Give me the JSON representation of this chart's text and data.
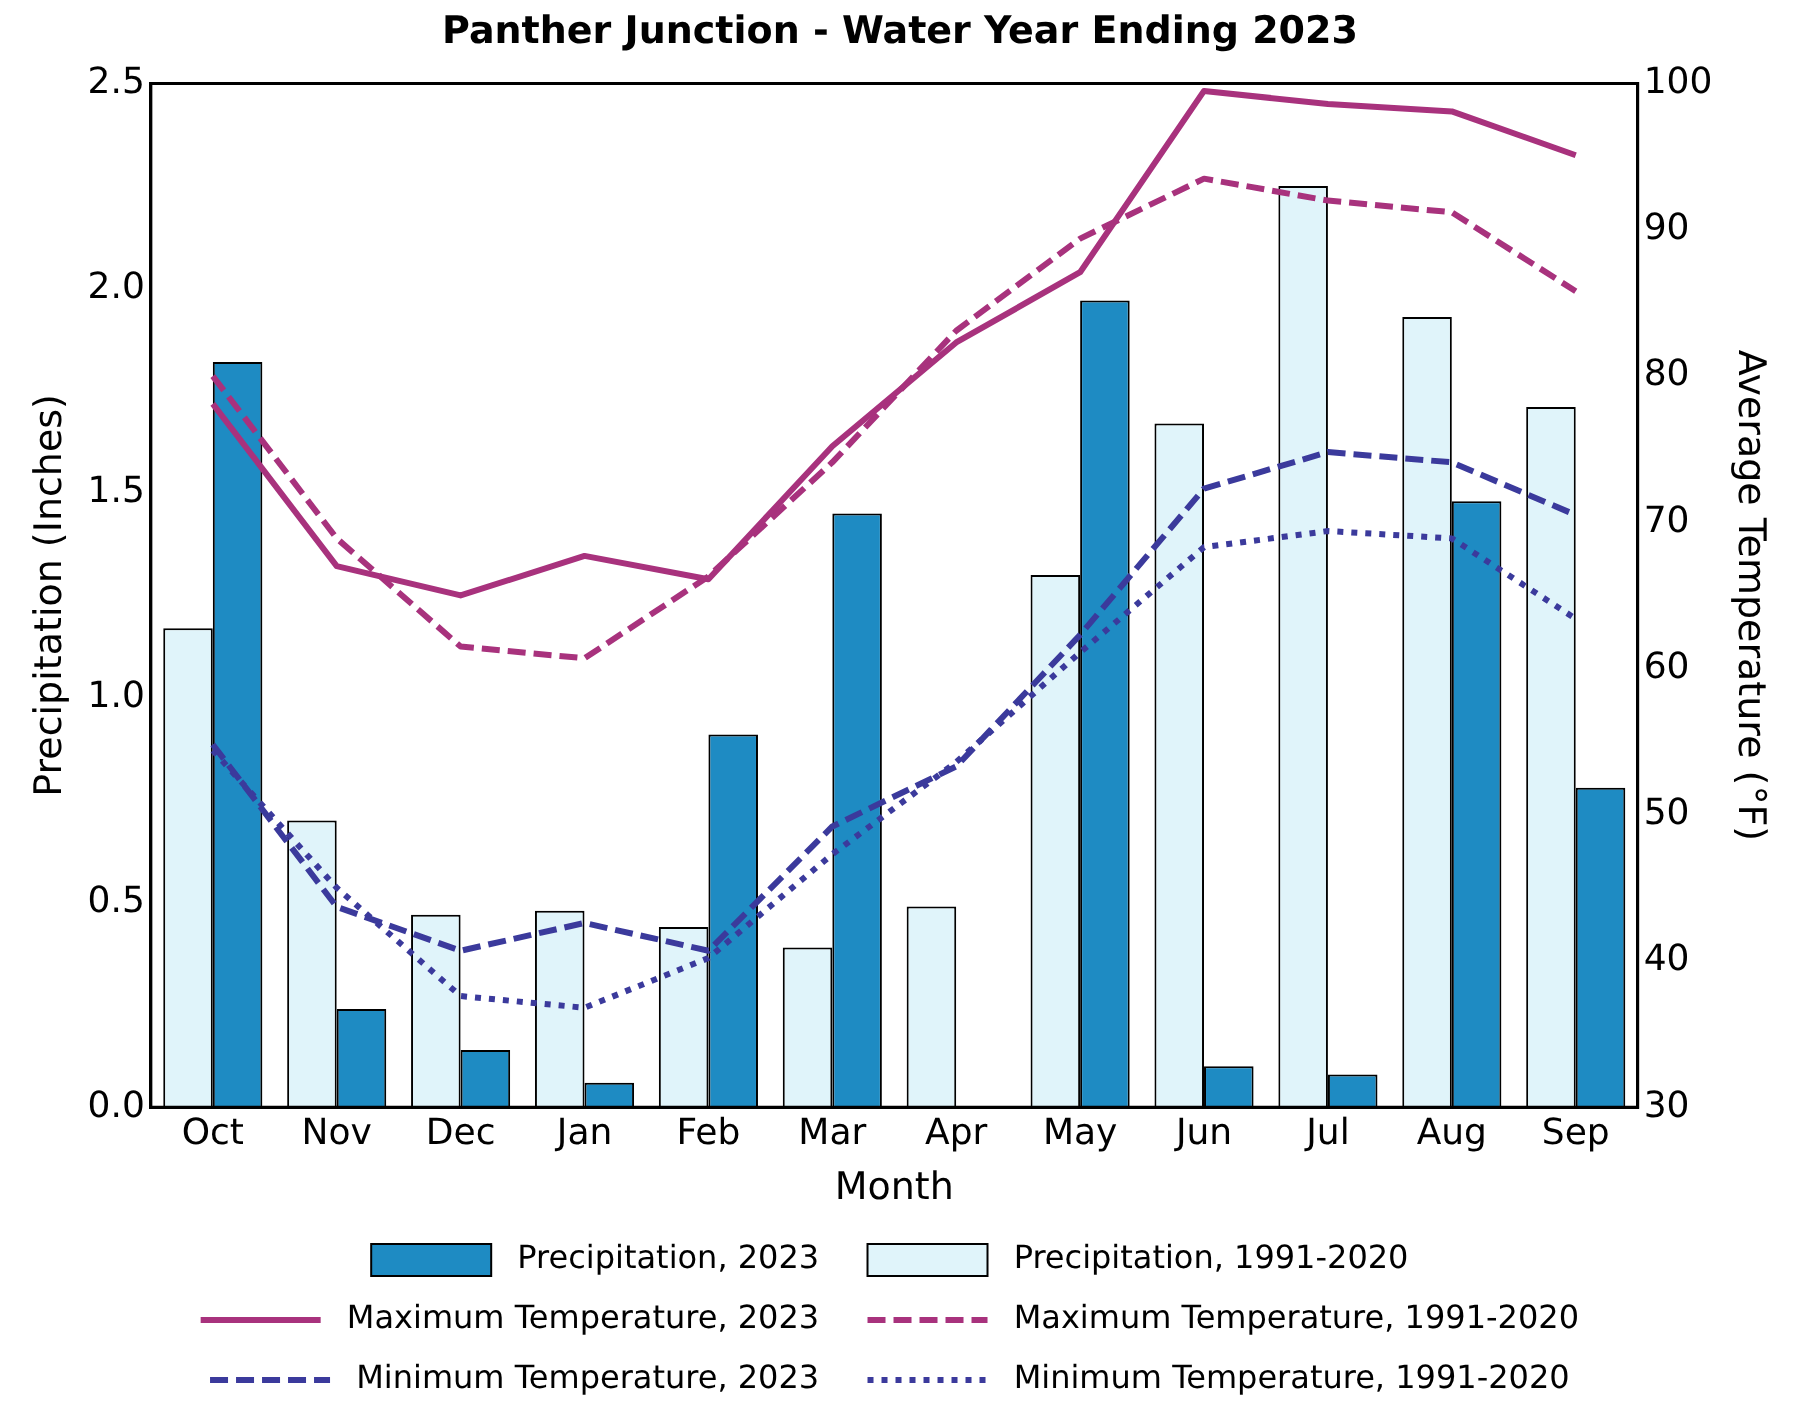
{
  "chart_data": {
    "type": "bar",
    "title": "Panther Junction - Water Year Ending 2023",
    "xlabel": "Month",
    "ylabel": "Precipitation (Inches)",
    "y2label": "Average Temperature (°F)",
    "categories": [
      "Oct",
      "Nov",
      "Dec",
      "Jan",
      "Feb",
      "Mar",
      "Apr",
      "May",
      "Jun",
      "Jul",
      "Aug",
      "Sep"
    ],
    "series": [
      {
        "name": "Precipitation, 2023",
        "color": "#1e8bc3",
        "values": [
          1.82,
          0.24,
          0.14,
          0.06,
          0.91,
          1.45,
          0,
          1.97,
          0.1,
          0.08,
          1.48,
          0.78
        ]
      },
      {
        "name": "Precipitation, 1991-2020",
        "color": "#e0f4fa",
        "values": [
          1.17,
          0.7,
          0.47,
          0.48,
          0.44,
          0.39,
          0.49,
          1.3,
          1.67,
          2.25,
          1.93,
          1.71
        ]
      },
      {
        "name": "Maximum Temperature, 2023",
        "type": "line",
        "axis": "y2",
        "line_style": "solid",
        "color": "#a8327d",
        "values": [
          78.1,
          67.0,
          65.0,
          67.7,
          66.1,
          75.2,
          82.3,
          87.1,
          99.5,
          98.6,
          98.1,
          95.1
        ]
      },
      {
        "name": "Maximum Temperature, 1991-2020",
        "type": "line",
        "axis": "y2",
        "line_style": "dashed",
        "color": "#a8327d",
        "values": [
          80.0,
          68.9,
          61.5,
          60.7,
          66.3,
          74.1,
          83.1,
          89.4,
          93.5,
          92.0,
          91.2,
          85.8
        ]
      },
      {
        "name": "Minimum Temperature, 2023",
        "type": "line",
        "axis": "y2",
        "line_style": "dashed",
        "color": "#3b3a9c",
        "values": [
          54.8,
          43.7,
          40.7,
          42.6,
          40.7,
          49.2,
          53.3,
          62.3,
          72.3,
          74.8,
          74.1,
          70.5
        ]
      },
      {
        "name": "Minimum Temperature, 1991-2020",
        "type": "line",
        "axis": "y2",
        "line_style": "dotted",
        "color": "#3b3a9c",
        "values": [
          54.4,
          45.0,
          37.6,
          36.8,
          40.2,
          47.3,
          53.6,
          61.1,
          68.3,
          69.4,
          68.9,
          63.4
        ]
      }
    ],
    "ylim": [
      0,
      2.5
    ],
    "yticks": [
      {
        "value": 0,
        "label": "0.0"
      },
      {
        "value": 0.5,
        "label": "0.5"
      },
      {
        "value": 1,
        "label": "1.0"
      },
      {
        "value": 1.5,
        "label": "1.5"
      },
      {
        "value": 2,
        "label": "2.0"
      },
      {
        "value": 2.5,
        "label": "2.5"
      }
    ],
    "y2lim": [
      30,
      100
    ],
    "y2ticks": [
      30,
      40,
      50,
      60,
      70,
      80,
      90,
      100
    ],
    "grid": false,
    "legend": "bottom",
    "marker": "none"
  }
}
